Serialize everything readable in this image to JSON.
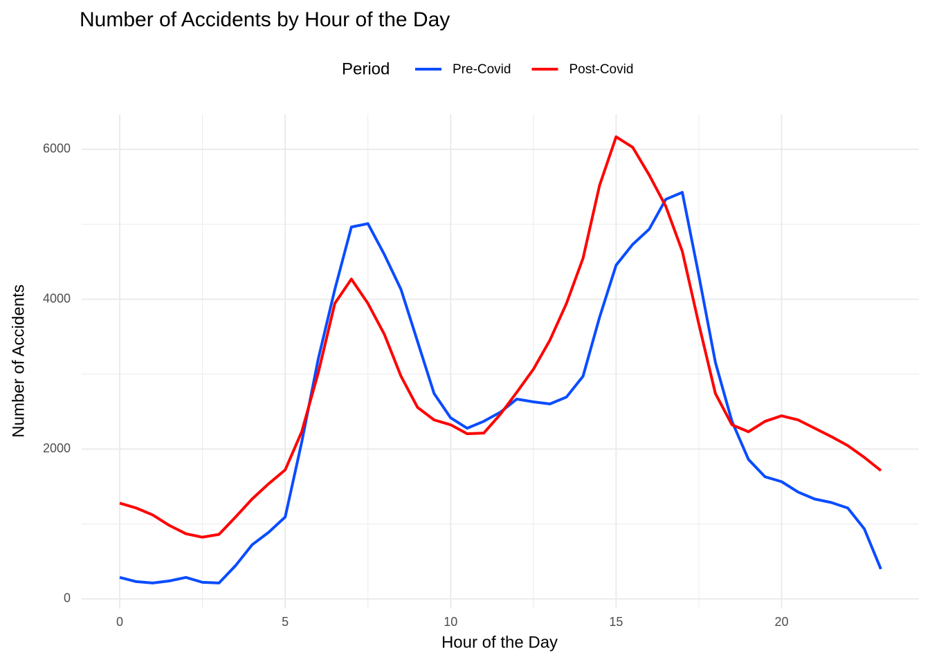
{
  "chart_data": {
    "type": "line",
    "title": "Number of Accidents by Hour of the Day",
    "x_label": "Hour of the Day",
    "y_label": "Number of Accidents",
    "legend_title": "Period",
    "legend_position": "top",
    "grid": true,
    "x": [
      0,
      0.5,
      1,
      1.5,
      2,
      2.5,
      3,
      3.5,
      4,
      4.5,
      5,
      5.5,
      6,
      6.5,
      7,
      7.5,
      8,
      8.5,
      9,
      9.5,
      10,
      10.5,
      11,
      11.5,
      12,
      12.5,
      13,
      13.5,
      14,
      14.5,
      15,
      15.5,
      16,
      16.5,
      17,
      17.5,
      18,
      18.5,
      19,
      19.5,
      20,
      20.5,
      21,
      21.5,
      22,
      22.5,
      23
    ],
    "series": [
      {
        "name": "Pre-Covid",
        "color": "#0a4cff",
        "values": [
          287,
          231,
          213,
          240,
          287,
          222,
          213,
          444,
          722,
          889,
          1093,
          2093,
          3204,
          4130,
          4963,
          5009,
          4593,
          4130,
          3435,
          2741,
          2417,
          2278,
          2370,
          2491,
          2667,
          2630,
          2602,
          2694,
          2972,
          3759,
          4454,
          4731,
          4935,
          5333,
          5426,
          4315,
          3157,
          2370,
          1861,
          1630,
          1565,
          1426,
          1333,
          1287,
          1213,
          935,
          398
        ]
      },
      {
        "name": "Post-Covid",
        "color": "#ff0000",
        "values": [
          1278,
          1213,
          1120,
          981,
          870,
          824,
          861,
          1093,
          1333,
          1537,
          1722,
          2231,
          3019,
          3944,
          4269,
          3944,
          3528,
          2972,
          2556,
          2389,
          2324,
          2204,
          2213,
          2463,
          2759,
          3065,
          3454,
          3944,
          4546,
          5519,
          6167,
          6028,
          5657,
          5241,
          4639,
          3667,
          2741,
          2324,
          2231,
          2370,
          2444,
          2389,
          2278,
          2167,
          2046,
          1889,
          1713
        ]
      }
    ],
    "xlim": [
      -1.15,
      24.15
    ],
    "ylim": [
      -130,
      6470
    ],
    "xticks": [
      0,
      5,
      10,
      15,
      20
    ],
    "yticks": [
      0,
      2000,
      4000,
      6000
    ]
  }
}
